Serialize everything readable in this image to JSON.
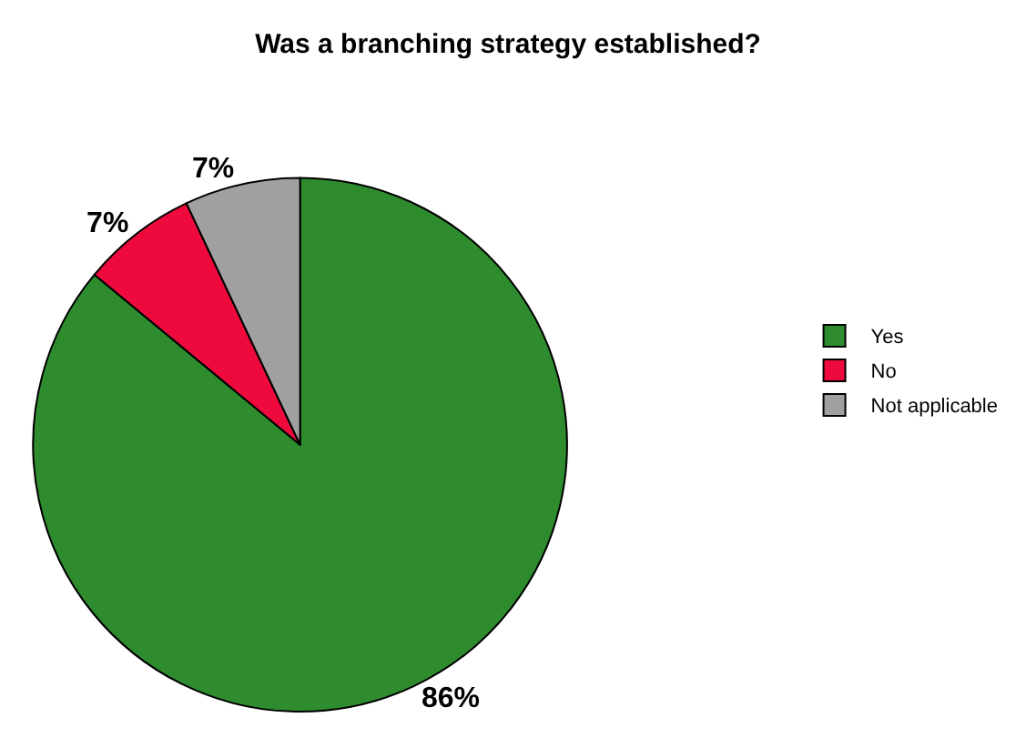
{
  "chart_data": {
    "type": "pie",
    "title": "Was a branching strategy established?",
    "categories": [
      "Yes",
      "No",
      "Not applicable"
    ],
    "values": [
      86,
      7,
      7
    ],
    "colors": [
      "#2e8b2e",
      "#ee0a3c",
      "#a0a0a0"
    ],
    "value_labels": [
      "86%",
      "7%",
      "7%"
    ],
    "legend": "right"
  }
}
